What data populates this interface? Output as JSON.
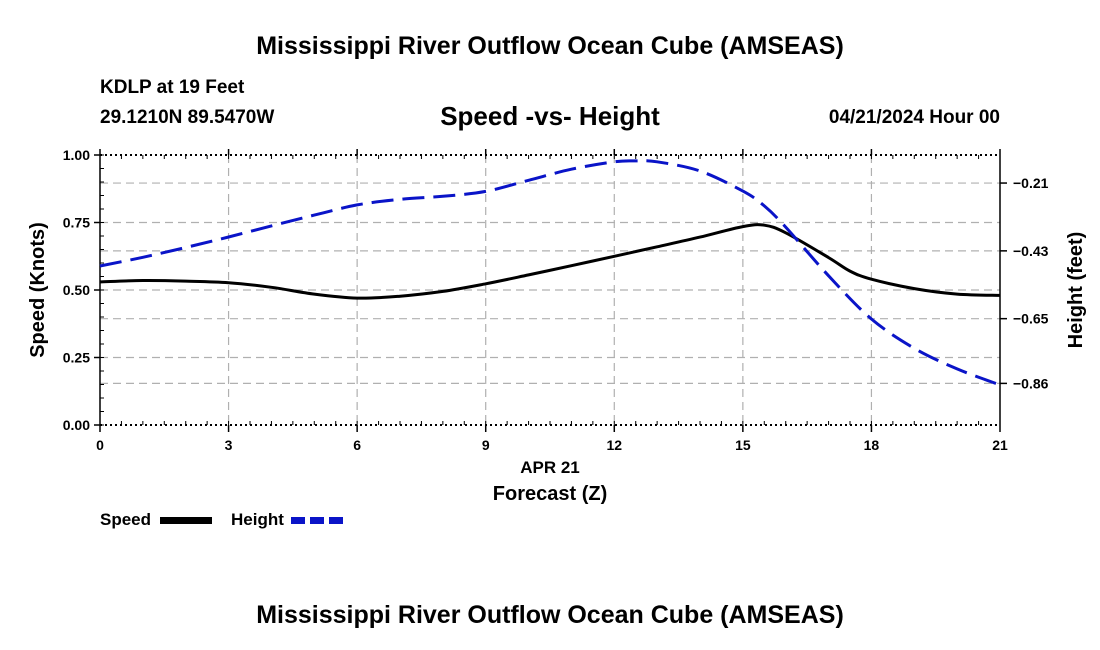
{
  "page": {
    "main_title": "Mississippi River Outflow Ocean Cube (AMSEAS)",
    "bottom_title": "Mississippi River Outflow Ocean Cube (AMSEAS)",
    "station_line": "KDLP at 19 Feet",
    "coords": "29.1210N  89.5470W",
    "datetime": "04/21/2024 Hour 00"
  },
  "chart_data": {
    "type": "line",
    "title": "Speed -vs- Height",
    "xlabel": "Forecast (Z)",
    "x_date_label": "APR 21",
    "ylabel_left": "Speed (Knots)",
    "ylabel_right": "Height (feet)",
    "xlim": [
      0,
      21
    ],
    "ylim_left": [
      0,
      1
    ],
    "ylim_right": [
      -0.995,
      -0.119
    ],
    "x_ticks": [
      0,
      3,
      6,
      9,
      12,
      15,
      18,
      21
    ],
    "x_tick_labels": [
      "0",
      "3",
      "6",
      "9",
      "12",
      "15",
      "18",
      "21"
    ],
    "y_left_ticks": [
      0,
      0.25,
      0.5,
      0.75,
      1.0
    ],
    "y_left_tick_labels": [
      "0.00",
      "0.25",
      "0.50",
      "0.75",
      "1.00"
    ],
    "y_right_ticks": [
      -0.21,
      -0.43,
      -0.65,
      -0.86
    ],
    "y_right_tick_labels": [
      "−0.21",
      "−0.43",
      "−0.65",
      "−0.86"
    ],
    "grid": true,
    "legend_position": "bottom-left",
    "series": [
      {
        "name": "Speed",
        "axis": "left",
        "color": "#000000",
        "style": "solid",
        "x": [
          0,
          1,
          2,
          3,
          4,
          5,
          6,
          7,
          8,
          9,
          10,
          11,
          12,
          13,
          14,
          15,
          15.5,
          16,
          17,
          17.5,
          18,
          19,
          20,
          21
        ],
        "values": [
          0.53,
          0.535,
          0.533,
          0.527,
          0.51,
          0.485,
          0.47,
          0.477,
          0.495,
          0.523,
          0.556,
          0.59,
          0.625,
          0.66,
          0.696,
          0.735,
          0.74,
          0.712,
          0.62,
          0.57,
          0.54,
          0.505,
          0.485,
          0.48
        ]
      },
      {
        "name": "Height",
        "axis": "right",
        "color": "#0a14c8",
        "style": "dashed",
        "x": [
          0,
          1,
          2,
          3,
          4,
          5,
          6,
          7,
          8,
          9,
          10,
          11,
          12,
          12.5,
          13,
          14,
          15,
          15.5,
          16,
          17,
          18,
          19,
          20,
          21
        ],
        "values": [
          -0.479,
          -0.451,
          -0.419,
          -0.385,
          -0.349,
          -0.314,
          -0.281,
          -0.263,
          -0.253,
          -0.237,
          -0.201,
          -0.165,
          -0.141,
          -0.138,
          -0.141,
          -0.171,
          -0.236,
          -0.284,
          -0.353,
          -0.511,
          -0.651,
          -0.746,
          -0.813,
          -0.865
        ]
      }
    ]
  }
}
